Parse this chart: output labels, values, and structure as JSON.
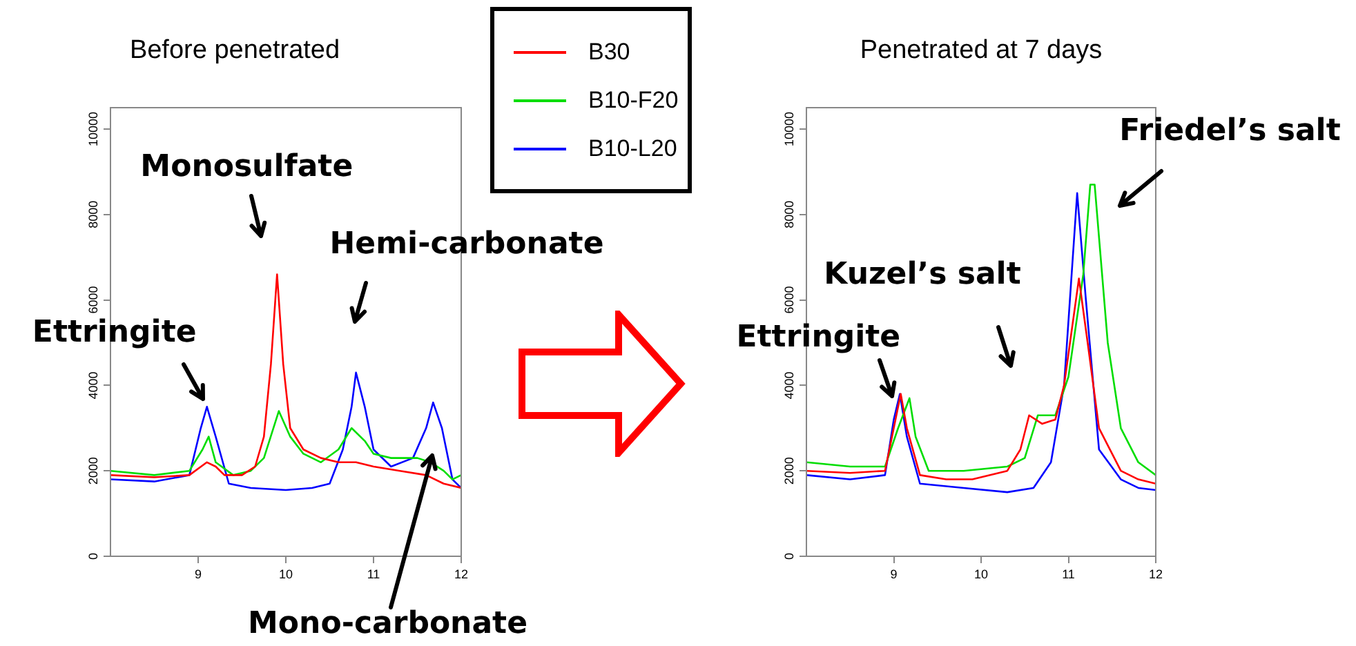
{
  "chart_data": [
    {
      "type": "line",
      "title": "Before penetrated",
      "xlim": [
        8,
        12
      ],
      "xticks": [
        9,
        10,
        11,
        12
      ],
      "ylim": [
        0,
        10500
      ],
      "yticks": [
        0,
        2000,
        4000,
        6000,
        8000,
        10000
      ],
      "grid": false,
      "legend": "top right",
      "marker": "none",
      "line_style": "solid",
      "annotations": [
        {
          "text": "Ettringite",
          "x": 9.1,
          "y": 3500
        },
        {
          "text": "Monosulfate",
          "x": 9.9,
          "y": 6600
        },
        "Hemi-carbonate",
        {
          "text": "Mono-carbonate",
          "x": 11.65,
          "y": 2300
        }
      ],
      "series": [
        {
          "name": "B30",
          "color": "#ff0000",
          "x": [
            8,
            8.5,
            8.9,
            9.1,
            9.2,
            9.3,
            9.5,
            9.65,
            9.75,
            9.83,
            9.9,
            9.97,
            10.05,
            10.2,
            10.4,
            10.6,
            10.8,
            11,
            11.3,
            11.6,
            11.8,
            12
          ],
          "values": [
            1900,
            1850,
            1900,
            2200,
            2100,
            1900,
            1900,
            2100,
            2800,
            4500,
            6600,
            4500,
            3000,
            2500,
            2300,
            2200,
            2200,
            2100,
            2000,
            1900,
            1700,
            1600
          ]
        },
        {
          "name": "B10-F20",
          "color": "#00dd00",
          "x": [
            8,
            8.5,
            8.9,
            9.05,
            9.12,
            9.2,
            9.4,
            9.6,
            9.75,
            9.92,
            10.05,
            10.2,
            10.4,
            10.6,
            10.75,
            10.9,
            11,
            11.2,
            11.5,
            11.65,
            11.8,
            11.9,
            12
          ],
          "values": [
            2000,
            1900,
            2000,
            2500,
            2800,
            2200,
            1900,
            2000,
            2300,
            3400,
            2800,
            2400,
            2200,
            2500,
            3000,
            2700,
            2400,
            2300,
            2300,
            2200,
            2000,
            1800,
            1900
          ]
        },
        {
          "name": "B10-L20",
          "color": "#0000ff",
          "x": [
            8,
            8.5,
            8.9,
            9.03,
            9.1,
            9.2,
            9.35,
            9.6,
            10,
            10.3,
            10.5,
            10.65,
            10.75,
            10.8,
            10.9,
            11,
            11.2,
            11.45,
            11.6,
            11.68,
            11.78,
            11.9,
            12
          ],
          "values": [
            1800,
            1750,
            1900,
            3000,
            3500,
            2800,
            1700,
            1600,
            1550,
            1600,
            1700,
            2500,
            3500,
            4300,
            3500,
            2500,
            2100,
            2300,
            3000,
            3600,
            3000,
            1800,
            1600
          ]
        }
      ]
    },
    {
      "type": "line",
      "title": "Penetrated at 7 days",
      "xlim": [
        8,
        12
      ],
      "xticks": [
        9,
        10,
        11,
        12
      ],
      "ylim": [
        0,
        10500
      ],
      "yticks": [
        0,
        2000,
        4000,
        6000,
        8000,
        10000
      ],
      "grid": false,
      "marker": "none",
      "line_style": "solid",
      "annotations": [
        {
          "text": "Ettringite",
          "x": 9.07,
          "y": 3800
        },
        "Kuzel’s salt",
        {
          "text": "Friedel’s salt",
          "x": 11.3,
          "y": 8700
        }
      ],
      "series": [
        {
          "color": "#ff0000",
          "x": [
            8,
            8.5,
            8.9,
            9,
            9.08,
            9.15,
            9.3,
            9.6,
            9.9,
            10.3,
            10.45,
            10.55,
            10.7,
            10.85,
            10.95,
            11.12,
            11.22,
            11.35,
            11.6,
            11.8,
            12
          ],
          "values": [
            2000,
            1950,
            2000,
            3000,
            3800,
            3000,
            1900,
            1800,
            1800,
            2000,
            2500,
            3300,
            3100,
            3200,
            4000,
            6500,
            5000,
            3000,
            2000,
            1800,
            1700
          ]
        },
        {
          "color": "#00dd00",
          "x": [
            8,
            8.5,
            8.9,
            9.05,
            9.18,
            9.25,
            9.4,
            9.8,
            10.3,
            10.5,
            10.65,
            10.85,
            11,
            11.17,
            11.25,
            11.3,
            11.45,
            11.6,
            11.8,
            12
          ],
          "values": [
            2200,
            2100,
            2100,
            3000,
            3700,
            2800,
            2000,
            2000,
            2100,
            2300,
            3300,
            3300,
            4200,
            6600,
            8700,
            8700,
            5000,
            3000,
            2200,
            1900
          ]
        },
        {
          "color": "#0000ff",
          "x": [
            8,
            8.5,
            8.9,
            9,
            9.07,
            9.15,
            9.3,
            9.8,
            10.3,
            10.6,
            10.8,
            10.95,
            11.1,
            11.2,
            11.35,
            11.6,
            11.8,
            12
          ],
          "values": [
            1900,
            1800,
            1900,
            3200,
            3800,
            2800,
            1700,
            1600,
            1500,
            1600,
            2200,
            4000,
            8500,
            6000,
            2500,
            1800,
            1600,
            1550
          ]
        }
      ]
    }
  ]
}
